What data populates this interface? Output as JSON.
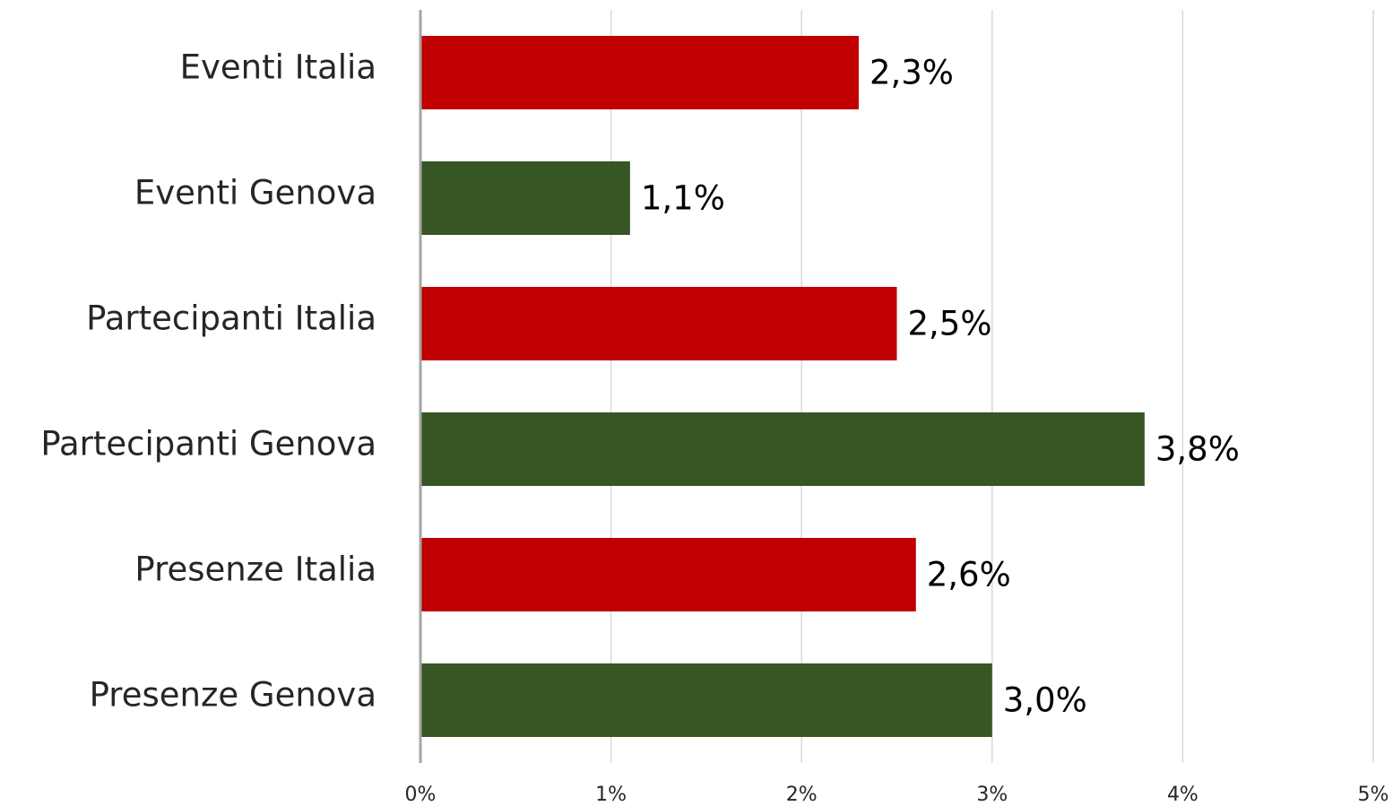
{
  "chart_data": {
    "type": "hbar",
    "categories": [
      "Eventi Italia",
      "Eventi Genova",
      "Partecipanti Italia",
      "Partecipanti Genova",
      "Presenze Italia",
      "Presenze Genova"
    ],
    "values": [
      2.3,
      1.1,
      2.5,
      3.8,
      2.6,
      3.0
    ],
    "value_labels": [
      "2,3%",
      "1,1%",
      "2,5%",
      "3,8%",
      "2,6%",
      "3,0%"
    ],
    "colors": [
      "#c00000",
      "#375623",
      "#c00000",
      "#375623",
      "#c00000",
      "#375623"
    ],
    "xlim": [
      0,
      5
    ],
    "xticks": [
      {
        "value": 0,
        "label": "0%"
      },
      {
        "value": 1,
        "label": "1%"
      },
      {
        "value": 2,
        "label": "2%"
      },
      {
        "value": 3,
        "label": "3%"
      },
      {
        "value": 4,
        "label": "4%"
      },
      {
        "value": 5,
        "label": "5%"
      }
    ],
    "grid": true
  }
}
